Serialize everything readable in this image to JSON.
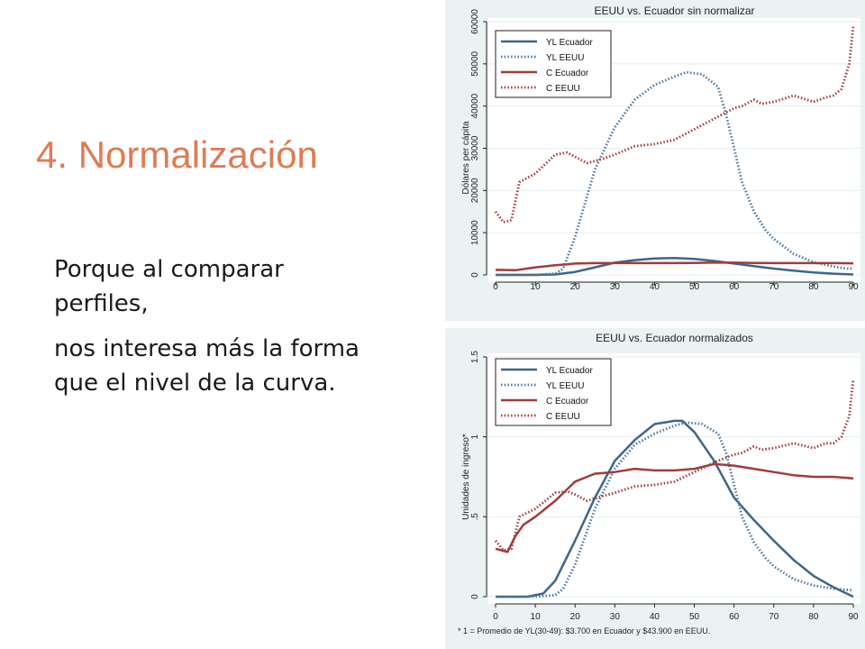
{
  "slide": {
    "title": "4. Normalización",
    "paragraphs": [
      "Porque al comparar perfiles,",
      "nos interesa más la forma que el nivel de la curva."
    ],
    "title_color": "#e07b55"
  },
  "colors": {
    "ecuador_blue": "#3e6688",
    "eeuu_blue": "#4c77a1",
    "ecuador_red": "#a33a3a",
    "eeuu_red": "#a33a3a",
    "panel_bg": "#eaf2f3"
  },
  "chart_data": [
    {
      "type": "line",
      "title": "EEUU vs. Ecuador sin normalizar",
      "xlabel": "",
      "ylabel": "Dólares per cápita",
      "xlim": [
        0,
        90
      ],
      "ylim": [
        0,
        60000
      ],
      "xticks": [
        0,
        10,
        20,
        30,
        40,
        50,
        60,
        70,
        80,
        90
      ],
      "xtick_labels": [
        "0",
        "10",
        "20",
        "30",
        "40",
        "50",
        "60",
        "70",
        "80",
        "90"
      ],
      "yticks": [
        0,
        10000,
        20000,
        30000,
        40000,
        50000,
        60000
      ],
      "ytick_labels": [
        "0",
        "10000",
        "20000",
        "30000",
        "40000",
        "50000",
        "60000"
      ],
      "grid": "horizontal",
      "legend_position": "top-left",
      "series": [
        {
          "name": "YL Ecuador",
          "color": "#3e6688",
          "style": "solid",
          "x": [
            0,
            10,
            15,
            20,
            25,
            30,
            35,
            40,
            45,
            50,
            55,
            60,
            65,
            70,
            75,
            80,
            85,
            90
          ],
          "y": [
            0,
            0,
            100,
            700,
            1800,
            2900,
            3500,
            3900,
            4000,
            3800,
            3300,
            2700,
            2100,
            1500,
            1000,
            600,
            300,
            100
          ]
        },
        {
          "name": "YL EEUU",
          "color": "#4c77a1",
          "style": "dotted",
          "x": [
            0,
            10,
            15,
            17,
            20,
            25,
            30,
            35,
            40,
            45,
            48,
            52,
            56,
            58,
            60,
            62,
            65,
            68,
            70,
            75,
            80,
            85,
            88,
            90
          ],
          "y": [
            0,
            0,
            300,
            1500,
            9000,
            25000,
            35000,
            41500,
            45000,
            47000,
            48000,
            47500,
            44500,
            38000,
            30000,
            22000,
            15000,
            10500,
            8500,
            5000,
            3000,
            2000,
            1500,
            1500
          ]
        },
        {
          "name": "C Ecuador",
          "color": "#a33a3a",
          "style": "solid",
          "x": [
            0,
            5,
            10,
            15,
            20,
            25,
            30,
            35,
            40,
            45,
            50,
            55,
            60,
            65,
            70,
            75,
            80,
            85,
            90
          ],
          "y": [
            1200,
            1100,
            1800,
            2300,
            2700,
            2800,
            2800,
            2800,
            2800,
            2800,
            2850,
            2950,
            2900,
            2850,
            2800,
            2800,
            2800,
            2800,
            2750
          ]
        },
        {
          "name": "C EEUU",
          "color": "#a33a3a",
          "style": "dotted",
          "x": [
            0,
            2,
            4,
            6,
            10,
            15,
            18,
            20,
            23,
            27,
            30,
            35,
            40,
            45,
            50,
            55,
            60,
            62,
            65,
            67,
            70,
            75,
            80,
            83,
            85,
            87,
            89,
            90
          ],
          "y": [
            15000,
            12500,
            13000,
            22000,
            24000,
            28500,
            29000,
            28000,
            26500,
            27500,
            28500,
            30500,
            31000,
            32000,
            34500,
            37000,
            39500,
            40000,
            41500,
            40500,
            41000,
            42500,
            41000,
            42000,
            42500,
            44000,
            50000,
            59000
          ]
        }
      ]
    },
    {
      "type": "line",
      "title": "EEUU vs. Ecuador normalizados",
      "xlabel": "",
      "ylabel": "Unidades de ingreso*",
      "note": "* 1 = Promedio de YL(30-49): $3.700 en Ecuador y $43.900 en EEUU.",
      "xlim": [
        0,
        90
      ],
      "ylim": [
        0,
        1.5
      ],
      "xticks": [
        0,
        10,
        20,
        30,
        40,
        50,
        60,
        70,
        80,
        90
      ],
      "xtick_labels": [
        "0",
        "10",
        "20",
        "30",
        "40",
        "50",
        "60",
        "70",
        "80",
        "90"
      ],
      "yticks": [
        0,
        0.5,
        1,
        1.5
      ],
      "ytick_labels": [
        "0",
        ".5",
        "1",
        "1.5"
      ],
      "grid": "horizontal",
      "legend_position": "top-left",
      "series": [
        {
          "name": "YL Ecuador",
          "color": "#3e6688",
          "style": "solid",
          "x": [
            0,
            8,
            12,
            15,
            20,
            25,
            30,
            35,
            40,
            45,
            47,
            50,
            55,
            60,
            65,
            70,
            75,
            80,
            85,
            90
          ],
          "y": [
            0,
            0,
            0.02,
            0.1,
            0.35,
            0.62,
            0.85,
            0.98,
            1.08,
            1.1,
            1.1,
            1.03,
            0.85,
            0.62,
            0.48,
            0.35,
            0.23,
            0.13,
            0.06,
            0.0
          ]
        },
        {
          "name": "YL EEUU",
          "color": "#4c77a1",
          "style": "dotted",
          "x": [
            0,
            10,
            15,
            17,
            20,
            25,
            30,
            35,
            40,
            45,
            48,
            52,
            56,
            58,
            60,
            62,
            65,
            68,
            70,
            75,
            80,
            85,
            90
          ],
          "y": [
            0,
            0,
            0.01,
            0.05,
            0.2,
            0.55,
            0.8,
            0.95,
            1.02,
            1.07,
            1.09,
            1.08,
            1.02,
            0.9,
            0.7,
            0.5,
            0.34,
            0.24,
            0.19,
            0.11,
            0.07,
            0.05,
            0.04
          ]
        },
        {
          "name": "C Ecuador",
          "color": "#a33a3a",
          "style": "solid",
          "x": [
            0,
            3,
            5,
            7,
            10,
            15,
            20,
            23,
            25,
            30,
            35,
            40,
            45,
            50,
            55,
            60,
            65,
            70,
            75,
            80,
            85,
            90
          ],
          "y": [
            0.3,
            0.28,
            0.38,
            0.45,
            0.5,
            0.6,
            0.72,
            0.75,
            0.77,
            0.78,
            0.8,
            0.79,
            0.79,
            0.8,
            0.83,
            0.82,
            0.8,
            0.78,
            0.76,
            0.75,
            0.75,
            0.74
          ]
        },
        {
          "name": "C EEUU",
          "color": "#a33a3a",
          "style": "dotted",
          "x": [
            0,
            2,
            4,
            6,
            10,
            15,
            18,
            20,
            23,
            27,
            30,
            35,
            40,
            45,
            50,
            55,
            60,
            62,
            65,
            67,
            70,
            75,
            80,
            83,
            85,
            87,
            89,
            90
          ],
          "y": [
            0.35,
            0.29,
            0.3,
            0.5,
            0.55,
            0.65,
            0.66,
            0.64,
            0.6,
            0.63,
            0.65,
            0.69,
            0.7,
            0.72,
            0.78,
            0.84,
            0.89,
            0.9,
            0.94,
            0.92,
            0.93,
            0.96,
            0.93,
            0.96,
            0.96,
            1.0,
            1.13,
            1.36
          ]
        }
      ]
    }
  ]
}
